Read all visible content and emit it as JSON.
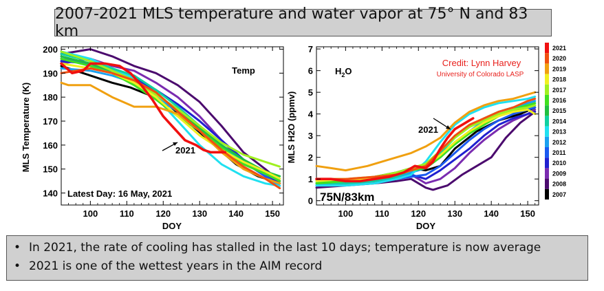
{
  "title": "2007-2021 MLS temperature and water vapor at 75° N and 83 km",
  "bullets": [
    "In 2021, the rate of cooling has stalled in the last 10 days; temperature is now average",
    "2021 is one of the wettest years in the AIM record"
  ],
  "colors": {
    "2007": "#000000",
    "2008": "#4b0a6e",
    "2009": "#7a2bb0",
    "2010": "#2020d0",
    "2011": "#1a5af0",
    "2012": "#1aa0f0",
    "2013": "#20e0f0",
    "2014": "#10d0a0",
    "2015": "#20c040",
    "2016": "#40e020",
    "2017": "#a0f020",
    "2018": "#f0f020",
    "2019": "#f0a010",
    "2020": "#f05010",
    "2021": "#f01010"
  },
  "chart_data": [
    {
      "type": "line",
      "title": "Temp",
      "xlabel": "DOY",
      "ylabel": "MLS Temperature (K)",
      "xlim": [
        92,
        153
      ],
      "ylim": [
        135,
        201
      ],
      "xticks": [
        "100",
        "110",
        "120",
        "130",
        "140",
        "150"
      ],
      "yticks": [
        "140",
        "150",
        "160",
        "170",
        "180",
        "190",
        "200"
      ],
      "annotations": [
        "Temp",
        "2021",
        "Latest Day: 16 May, 2021"
      ],
      "series": [
        {
          "name": "2007",
          "x": [
            92,
            100,
            106,
            111,
            116,
            122,
            128,
            134,
            140,
            146,
            152
          ],
          "y": [
            193,
            189,
            186,
            184,
            181,
            176,
            168,
            160,
            152,
            147,
            144
          ]
        },
        {
          "name": "2008",
          "x": [
            92,
            100,
            106,
            112,
            118,
            124,
            130,
            136,
            142,
            148,
            152
          ],
          "y": [
            198,
            200,
            197,
            193,
            190,
            185,
            178,
            168,
            157,
            150,
            145
          ]
        },
        {
          "name": "2009",
          "x": [
            92,
            100,
            106,
            112,
            118,
            124,
            130,
            136,
            142,
            148,
            152
          ],
          "y": [
            194,
            196,
            193,
            191,
            186,
            180,
            172,
            162,
            153,
            148,
            145
          ]
        },
        {
          "name": "2010",
          "x": [
            92,
            100,
            106,
            112,
            118,
            124,
            130,
            136,
            142,
            148,
            152
          ],
          "y": [
            195,
            194,
            192,
            188,
            183,
            177,
            170,
            162,
            154,
            148,
            144
          ]
        },
        {
          "name": "2011",
          "x": [
            92,
            100,
            106,
            112,
            118,
            124,
            130,
            136,
            142,
            148,
            152
          ],
          "y": [
            196,
            194,
            190,
            187,
            181,
            175,
            168,
            160,
            153,
            147,
            143
          ]
        },
        {
          "name": "2012",
          "x": [
            92,
            100,
            106,
            112,
            118,
            124,
            130,
            136,
            142,
            148,
            152
          ],
          "y": [
            192,
            191,
            189,
            186,
            180,
            174,
            167,
            159,
            151,
            146,
            143
          ]
        },
        {
          "name": "2013",
          "x": [
            92,
            100,
            106,
            112,
            118,
            124,
            130,
            136,
            142,
            148,
            152
          ],
          "y": [
            199,
            196,
            192,
            188,
            180,
            170,
            160,
            152,
            147,
            144,
            143
          ]
        },
        {
          "name": "2014",
          "x": [
            92,
            100,
            106,
            112,
            118,
            124,
            130,
            136,
            142,
            148,
            152
          ],
          "y": [
            198,
            195,
            192,
            189,
            183,
            176,
            168,
            160,
            153,
            148,
            146
          ]
        },
        {
          "name": "2015",
          "x": [
            92,
            100,
            106,
            112,
            118,
            124,
            130,
            136,
            142,
            148,
            152
          ],
          "y": [
            197,
            194,
            191,
            187,
            182,
            174,
            167,
            160,
            154,
            149,
            147
          ]
        },
        {
          "name": "2016",
          "x": [
            92,
            100,
            106,
            112,
            118,
            124,
            130,
            136,
            142,
            148,
            152
          ],
          "y": [
            196,
            193,
            190,
            185,
            179,
            172,
            166,
            159,
            152,
            148,
            145
          ]
        },
        {
          "name": "2017",
          "x": [
            92,
            100,
            106,
            112,
            118,
            124,
            130,
            136,
            142,
            148,
            152
          ],
          "y": [
            199,
            195,
            191,
            187,
            181,
            175,
            168,
            161,
            156,
            153,
            151
          ]
        },
        {
          "name": "2018",
          "x": [
            92,
            100,
            106,
            112,
            118,
            124,
            130,
            136,
            142,
            148,
            152
          ],
          "y": [
            194,
            192,
            190,
            186,
            180,
            172,
            164,
            158,
            153,
            149,
            146
          ]
        },
        {
          "name": "2019",
          "x": [
            92,
            94,
            100,
            106,
            112,
            118,
            124,
            130,
            136,
            142,
            148,
            152
          ],
          "y": [
            186,
            185,
            185,
            180,
            176,
            176,
            173,
            166,
            157,
            150,
            146,
            144
          ]
        },
        {
          "name": "2020",
          "x": [
            92,
            100,
            106,
            112,
            118,
            124,
            130,
            136,
            142,
            148,
            152
          ],
          "y": [
            190,
            192,
            190,
            187,
            182,
            174,
            166,
            158,
            151,
            146,
            142
          ]
        },
        {
          "name": "2021",
          "x": [
            92,
            95,
            98,
            100,
            104,
            108,
            111,
            114,
            117,
            120,
            123,
            126,
            129,
            131,
            133,
            135,
            137
          ],
          "y": [
            194,
            190,
            191,
            194,
            194,
            193,
            190,
            185,
            179,
            172,
            167,
            162,
            160,
            158,
            157,
            157,
            157
          ]
        }
      ]
    },
    {
      "type": "line",
      "title": "H2O",
      "xlabel": "DOY",
      "ylabel": "MLS H2O (ppmv)",
      "xlim": [
        92,
        153
      ],
      "ylim": [
        -0.2,
        7.1
      ],
      "xticks": [
        "100",
        "110",
        "120",
        "130",
        "140",
        "150"
      ],
      "yticks": [
        "0",
        "1",
        "2",
        "3",
        "4",
        "5",
        "6",
        "7"
      ],
      "annotations": [
        "H2O",
        "2021",
        "75N/83km",
        "Credit: Lynn Harvey",
        "University of Colorado LASP"
      ],
      "series": [
        {
          "name": "2007",
          "x": [
            92,
            100,
            108,
            114,
            118,
            122,
            126,
            130,
            136,
            142,
            148,
            152
          ],
          "y": [
            0.8,
            0.9,
            1.1,
            1.3,
            1.5,
            1.4,
            1.6,
            2.4,
            3.2,
            3.7,
            4.0,
            4.3
          ]
        },
        {
          "name": "2008",
          "x": [
            92,
            100,
            108,
            114,
            118,
            122,
            124,
            128,
            132,
            136,
            140,
            144,
            148,
            152
          ],
          "y": [
            0.6,
            0.7,
            0.8,
            0.9,
            1.0,
            0.6,
            0.5,
            0.7,
            1.2,
            1.6,
            2.0,
            2.9,
            3.6,
            4.1
          ]
        },
        {
          "name": "2009",
          "x": [
            92,
            100,
            108,
            114,
            118,
            122,
            126,
            130,
            134,
            138,
            142,
            146,
            150,
            152
          ],
          "y": [
            0.7,
            0.8,
            0.9,
            1.0,
            1.2,
            0.8,
            1.0,
            1.5,
            2.2,
            2.8,
            3.3,
            3.7,
            4.0,
            4.2
          ]
        },
        {
          "name": "2010",
          "x": [
            92,
            100,
            108,
            114,
            118,
            122,
            126,
            130,
            134,
            138,
            142,
            146,
            150,
            152
          ],
          "y": [
            0.8,
            0.9,
            1.0,
            1.1,
            1.2,
            1.0,
            1.4,
            1.9,
            2.4,
            3.0,
            3.5,
            3.8,
            4.0,
            4.1
          ]
        },
        {
          "name": "2011",
          "x": [
            92,
            100,
            108,
            114,
            118,
            122,
            126,
            130,
            134,
            138,
            142,
            146,
            150,
            152
          ],
          "y": [
            0.7,
            0.8,
            0.9,
            1.0,
            1.1,
            1.2,
            1.6,
            2.2,
            2.8,
            3.3,
            3.7,
            4.0,
            4.2,
            4.3
          ]
        },
        {
          "name": "2012",
          "x": [
            92,
            100,
            108,
            114,
            118,
            122,
            126,
            130,
            134,
            138,
            142,
            146,
            150,
            152
          ],
          "y": [
            0.8,
            0.9,
            1.0,
            1.1,
            1.3,
            1.5,
            2.0,
            2.6,
            3.2,
            3.7,
            4.1,
            4.3,
            4.5,
            4.6
          ]
        },
        {
          "name": "2013",
          "x": [
            92,
            100,
            108,
            114,
            118,
            122,
            126,
            130,
            134,
            138,
            142,
            146,
            150,
            152
          ],
          "y": [
            0.7,
            0.7,
            0.8,
            1.0,
            1.2,
            1.8,
            2.7,
            3.5,
            4.0,
            4.3,
            4.5,
            4.6,
            4.7,
            4.8
          ]
        },
        {
          "name": "2014",
          "x": [
            92,
            100,
            108,
            114,
            118,
            122,
            126,
            130,
            134,
            138,
            142,
            146,
            150,
            152
          ],
          "y": [
            0.8,
            0.8,
            0.9,
            1.1,
            1.4,
            1.7,
            2.2,
            2.9,
            3.4,
            3.8,
            4.1,
            4.3,
            4.4,
            4.5
          ]
        },
        {
          "name": "2015",
          "x": [
            92,
            100,
            108,
            114,
            118,
            122,
            126,
            130,
            134,
            138,
            142,
            146,
            150,
            152
          ],
          "y": [
            0.9,
            0.9,
            1.0,
            1.2,
            1.5,
            1.6,
            2.1,
            2.7,
            3.2,
            3.6,
            3.9,
            4.1,
            4.3,
            4.4
          ]
        },
        {
          "name": "2016",
          "x": [
            92,
            100,
            108,
            114,
            118,
            122,
            126,
            130,
            134,
            138,
            142,
            146,
            150,
            152
          ],
          "y": [
            0.8,
            0.9,
            1.0,
            1.2,
            1.4,
            1.5,
            2.0,
            2.6,
            3.1,
            3.5,
            3.9,
            4.2,
            4.4,
            4.5
          ]
        },
        {
          "name": "2017",
          "x": [
            92,
            100,
            108,
            114,
            118,
            122,
            126,
            130,
            134,
            138,
            142,
            146,
            150,
            152
          ],
          "y": [
            1.0,
            1.0,
            1.1,
            1.3,
            1.5,
            1.7,
            2.3,
            2.9,
            3.4,
            3.7,
            4.0,
            4.2,
            4.3,
            4.4
          ]
        },
        {
          "name": "2018",
          "x": [
            92,
            100,
            108,
            114,
            118,
            122,
            126,
            130,
            134,
            138,
            142,
            146,
            150,
            152
          ],
          "y": [
            0.9,
            1.0,
            1.0,
            1.2,
            1.4,
            1.6,
            2.1,
            2.7,
            3.2,
            3.6,
            3.9,
            4.1,
            4.2,
            4.0
          ]
        },
        {
          "name": "2019",
          "x": [
            92,
            96,
            100,
            106,
            112,
            118,
            122,
            126,
            130,
            134,
            138,
            142,
            146,
            150,
            152
          ],
          "y": [
            1.6,
            1.5,
            1.4,
            1.6,
            1.9,
            2.2,
            2.5,
            2.9,
            3.6,
            4.1,
            4.4,
            4.6,
            4.7,
            4.9,
            5.0
          ]
        },
        {
          "name": "2020",
          "x": [
            92,
            100,
            108,
            114,
            118,
            122,
            126,
            130,
            134,
            138,
            142,
            146,
            150,
            152
          ],
          "y": [
            1.0,
            1.0,
            1.1,
            1.2,
            1.4,
            1.6,
            2.3,
            3.0,
            3.5,
            3.8,
            4.1,
            4.3,
            4.6,
            4.7
          ]
        },
        {
          "name": "2021",
          "x": [
            92,
            96,
            100,
            104,
            108,
            112,
            116,
            119,
            122,
            124,
            126,
            128,
            130,
            132,
            134,
            135
          ],
          "y": [
            1.0,
            1.0,
            0.9,
            0.9,
            1.0,
            1.1,
            1.3,
            1.6,
            1.5,
            1.8,
            2.4,
            2.9,
            3.3,
            3.5,
            3.7,
            3.8
          ]
        }
      ]
    }
  ]
}
